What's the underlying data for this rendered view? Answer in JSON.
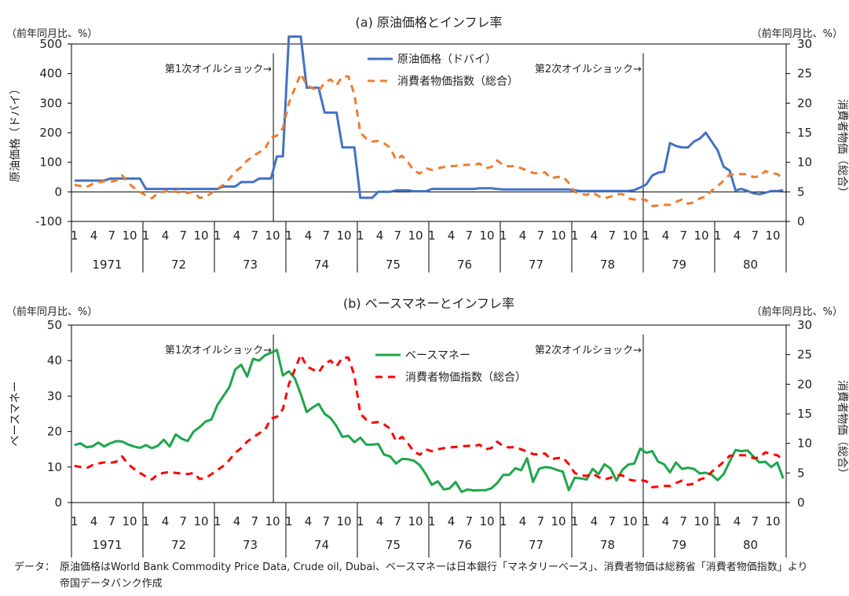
{
  "chart_data": [
    {
      "type": "line",
      "title": "(a) 原油価格とインフレ率",
      "unit_left": "（前年同月比、%）",
      "unit_right": "（前年同月比、%）",
      "ylabel": "原油価格（ドバイ）",
      "ylabel_right": "消費者物価（総合）",
      "ylim": [
        -100,
        500
      ],
      "yticks": [
        "-100",
        "0",
        "100",
        "200",
        "300",
        "400",
        "500"
      ],
      "ylim_right": [
        0,
        30
      ],
      "yticks_right": [
        "0",
        "5",
        "10",
        "15",
        "20",
        "25",
        "30"
      ],
      "month_ticks": [
        "1",
        "4",
        "7",
        "10"
      ],
      "years": [
        "1971",
        "72",
        "73",
        "74",
        "75",
        "76",
        "77",
        "78",
        "79",
        "80"
      ],
      "grid": false,
      "legend": "top-center",
      "annotations": [
        {
          "text": "第1次オイルショック→",
          "at": "1973-10"
        },
        {
          "text": "第2次オイルショック→",
          "at": "1979-01"
        }
      ],
      "series": [
        {
          "name": "原油価格（ドバイ）",
          "axis": "left",
          "color": "#4472C4",
          "style": "solid",
          "values": [
            38,
            38,
            38,
            38,
            38,
            38,
            45,
            45,
            45,
            45,
            45,
            45,
            10,
            10,
            10,
            10,
            10,
            10,
            10,
            10,
            10,
            10,
            10,
            10,
            10,
            18,
            18,
            18,
            33,
            33,
            33,
            45,
            45,
            45,
            120,
            120,
            525,
            525,
            525,
            352,
            352,
            352,
            268,
            268,
            268,
            150,
            150,
            150,
            -20,
            -20,
            -20,
            0,
            0,
            0,
            5,
            5,
            5,
            2,
            2,
            2,
            10,
            10,
            10,
            10,
            10,
            10,
            10,
            10,
            12,
            12,
            12,
            10,
            8,
            8,
            8,
            8,
            8,
            8,
            8,
            8,
            8,
            8,
            8,
            8,
            5,
            3,
            3,
            3,
            3,
            3,
            3,
            3,
            3,
            3,
            6,
            15,
            25,
            55,
            65,
            68,
            165,
            155,
            150,
            150,
            170,
            180,
            200,
            170,
            140,
            85,
            72,
            5,
            10,
            3,
            -5,
            -8,
            -3,
            3,
            3,
            5
          ]
        },
        {
          "name": "消費者物価指数（総合）",
          "axis": "right",
          "color": "#ED7D31",
          "style": "dashed",
          "values": [
            6.2,
            6.0,
            5.8,
            6.3,
            6.6,
            6.8,
            6.7,
            6.9,
            7.8,
            6.5,
            5.7,
            5.0,
            4.4,
            3.9,
            4.8,
            5.0,
            5.2,
            5.0,
            4.9,
            4.8,
            5.0,
            4.0,
            4.1,
            4.8,
            5.5,
            6.2,
            7.2,
            8.4,
            9.2,
            10.3,
            11.0,
            11.7,
            12.3,
            14.2,
            14.5,
            15.8,
            20.0,
            22.5,
            25.0,
            23.0,
            22.5,
            22.0,
            23.5,
            24.0,
            23.0,
            24.5,
            24.5,
            21.5,
            15.0,
            14.0,
            13.5,
            13.6,
            13.2,
            12.5,
            10.4,
            11.1,
            10.0,
            8.6,
            8.1,
            9.0,
            8.7,
            9.0,
            9.2,
            9.3,
            9.4,
            9.5,
            9.6,
            9.5,
            9.8,
            9.0,
            9.2,
            10.3,
            9.5,
            9.3,
            9.4,
            9.0,
            8.6,
            8.2,
            8.1,
            8.3,
            7.3,
            7.5,
            7.6,
            6.5,
            5.0,
            4.6,
            4.5,
            4.9,
            4.3,
            3.9,
            4.2,
            4.6,
            4.6,
            3.9,
            3.7,
            3.8,
            3.6,
            2.6,
            2.7,
            2.8,
            2.8,
            3.3,
            3.7,
            3.0,
            3.2,
            3.9,
            4.2,
            5.2,
            6.0,
            6.9,
            7.9,
            8.0,
            8.0,
            8.0,
            7.5,
            7.6,
            8.5,
            8.2,
            8.0,
            7.2
          ]
        }
      ]
    },
    {
      "type": "line",
      "title": "(b) ベースマネーとインフレ率",
      "unit_left": "（前年同月比、%）",
      "unit_right": "（前年同月比、%）",
      "ylabel": "ベースマネー",
      "ylabel_right": "消費者物価（総合）",
      "ylim": [
        0,
        50
      ],
      "yticks": [
        "0",
        "10",
        "20",
        "30",
        "40",
        "50"
      ],
      "ylim_right": [
        0,
        30
      ],
      "yticks_right": [
        "0",
        "5",
        "10",
        "15",
        "20",
        "25",
        "30"
      ],
      "month_ticks": [
        "1",
        "4",
        "7",
        "10"
      ],
      "years": [
        "1971",
        "72",
        "73",
        "74",
        "75",
        "76",
        "77",
        "78",
        "79",
        "80"
      ],
      "grid": false,
      "legend": "top-center",
      "annotations": [
        {
          "text": "第1次オイルショック→",
          "at": "1973-10"
        },
        {
          "text": "第2次オイルショック→",
          "at": "1979-01"
        }
      ],
      "series": [
        {
          "name": "ベースマネー",
          "axis": "left",
          "color": "#1DA64A",
          "style": "solid",
          "values": [
            16.2,
            16.7,
            15.6,
            15.8,
            16.9,
            15.8,
            16.7,
            17.3,
            17.2,
            16.4,
            15.8,
            15.4,
            16.2,
            15.3,
            16.0,
            17.7,
            15.8,
            19.2,
            18.0,
            17.3,
            20.0,
            21.2,
            22.8,
            23.4,
            27.5,
            30.0,
            32.5,
            37.5,
            38.8,
            35.5,
            40.5,
            40.0,
            41.5,
            42.2,
            43.0,
            35.8,
            37.0,
            35.0,
            30.5,
            25.5,
            26.8,
            27.8,
            25.0,
            23.8,
            21.5,
            18.5,
            18.8,
            17.0,
            18.3,
            16.3,
            16.3,
            16.5,
            13.5,
            13.0,
            11.0,
            12.3,
            12.2,
            11.8,
            10.5,
            8.0,
            5.0,
            6.0,
            3.7,
            4.0,
            5.8,
            3.0,
            3.7,
            3.4,
            3.5,
            3.5,
            4.0,
            5.5,
            7.8,
            7.8,
            9.7,
            9.1,
            12.5,
            5.8,
            9.5,
            10.0,
            9.8,
            9.2,
            8.7,
            3.5,
            7.0,
            6.8,
            6.5,
            9.5,
            8.0,
            10.8,
            9.6,
            6.2,
            9.2,
            10.7,
            11.0,
            15.2,
            14.0,
            14.5,
            11.5,
            10.8,
            8.5,
            11.3,
            9.5,
            9.8,
            9.5,
            8.2,
            8.4,
            7.8,
            6.3,
            8.0,
            11.5,
            14.8,
            14.5,
            14.7,
            13.0,
            11.3,
            11.5,
            10.0,
            11.3,
            6.8
          ]
        },
        {
          "name": "消費者物価指数（総合）",
          "axis": "right",
          "color": "#FF0000",
          "style": "dashed",
          "values": [
            6.2,
            6.0,
            5.8,
            6.3,
            6.6,
            6.8,
            6.7,
            6.9,
            7.8,
            6.5,
            5.7,
            5.0,
            4.4,
            3.9,
            4.8,
            5.0,
            5.2,
            5.0,
            4.9,
            4.8,
            5.0,
            4.0,
            4.1,
            4.8,
            5.5,
            6.2,
            7.2,
            8.4,
            9.2,
            10.3,
            11.0,
            11.7,
            12.3,
            14.2,
            14.5,
            15.8,
            20.0,
            22.5,
            25.0,
            23.0,
            22.5,
            22.0,
            23.5,
            24.0,
            23.0,
            24.5,
            24.5,
            21.5,
            15.0,
            14.0,
            13.5,
            13.6,
            13.2,
            12.5,
            10.4,
            11.1,
            10.0,
            8.6,
            8.1,
            9.0,
            8.7,
            9.0,
            9.2,
            9.3,
            9.4,
            9.5,
            9.6,
            9.5,
            9.8,
            9.0,
            9.2,
            10.3,
            9.5,
            9.3,
            9.4,
            9.0,
            8.6,
            8.2,
            8.1,
            8.3,
            7.3,
            7.5,
            7.6,
            6.5,
            5.0,
            4.6,
            4.5,
            4.9,
            4.3,
            3.9,
            4.2,
            4.6,
            4.6,
            3.9,
            3.7,
            3.8,
            3.6,
            2.6,
            2.7,
            2.8,
            2.8,
            3.3,
            3.7,
            3.0,
            3.2,
            3.9,
            4.2,
            5.2,
            6.0,
            6.9,
            7.9,
            8.0,
            8.0,
            8.0,
            7.5,
            7.6,
            8.5,
            8.2,
            8.0,
            7.2
          ]
        }
      ]
    }
  ],
  "footer": {
    "label": "データ：",
    "line1": "原油価格はWorld Bank Commodity Price Data, Crude oil, Dubai、ベースマネーは日本銀行「マネタリーベース」、消費者物価は総務省「消費者物価指数」より",
    "line2": "帝国データバンク作成"
  }
}
